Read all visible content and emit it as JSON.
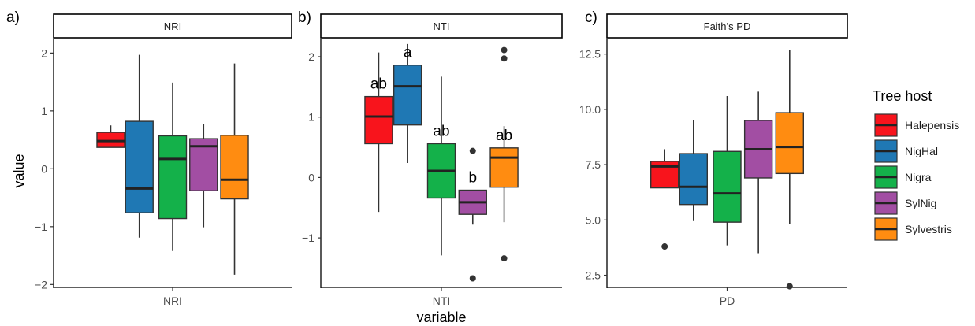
{
  "chart_data": [
    {
      "type": "boxplot",
      "panel_tag": "a)",
      "strip_title": "NRI",
      "xlabel": "NRI",
      "ylabel": "value",
      "ylim": [
        -2.05,
        2.25
      ],
      "yticks": [
        -2,
        -1,
        0,
        1,
        2
      ],
      "ytick_labels": [
        "−2",
        "−1",
        "0",
        "1",
        "2"
      ],
      "series": [
        {
          "name": "Halepensis",
          "whisker_low": 0.37,
          "q1": 0.37,
          "median": 0.48,
          "q3": 0.63,
          "whisker_high": 0.75,
          "outliers": [],
          "letter": ""
        },
        {
          "name": "NigHal",
          "whisker_low": -1.19,
          "q1": -0.76,
          "median": -0.34,
          "q3": 0.82,
          "whisker_high": 1.97,
          "outliers": [],
          "letter": ""
        },
        {
          "name": "Nigra",
          "whisker_low": -1.42,
          "q1": -0.86,
          "median": 0.17,
          "q3": 0.57,
          "whisker_high": 1.49,
          "outliers": [],
          "letter": ""
        },
        {
          "name": "SylNig",
          "whisker_low": -1.01,
          "q1": -0.38,
          "median": 0.39,
          "q3": 0.52,
          "whisker_high": 0.78,
          "outliers": [],
          "letter": ""
        },
        {
          "name": "Sylvestris",
          "whisker_low": -1.83,
          "q1": -0.52,
          "median": -0.19,
          "q3": 0.58,
          "whisker_high": 1.82,
          "outliers": [],
          "letter": ""
        }
      ]
    },
    {
      "type": "boxplot",
      "panel_tag": "b)",
      "strip_title": "NTI",
      "xlabel": "NTI",
      "ylabel": "",
      "ylim": [
        -1.82,
        2.3
      ],
      "yticks": [
        -1,
        0,
        1,
        2
      ],
      "ytick_labels": [
        "−1",
        "0",
        "1",
        "2"
      ],
      "series": [
        {
          "name": "Halepensis",
          "whisker_low": -0.57,
          "q1": 0.56,
          "median": 1.01,
          "q3": 1.34,
          "whisker_high": 2.07,
          "outliers": [],
          "letter": "ab"
        },
        {
          "name": "NigHal",
          "whisker_low": 0.24,
          "q1": 0.87,
          "median": 1.51,
          "q3": 1.86,
          "whisker_high": 2.21,
          "outliers": [],
          "letter": "a"
        },
        {
          "name": "Nigra",
          "whisker_low": -1.29,
          "q1": -0.34,
          "median": 0.11,
          "q3": 0.56,
          "whisker_high": 1.67,
          "outliers": [],
          "letter": "ab"
        },
        {
          "name": "SylNig",
          "whisker_low": -0.78,
          "q1": -0.61,
          "median": -0.41,
          "q3": -0.21,
          "whisker_high": -0.21,
          "outliers": [
            0.44,
            -1.67
          ],
          "letter": "b"
        },
        {
          "name": "Sylvestris",
          "whisker_low": -0.74,
          "q1": -0.16,
          "median": 0.33,
          "q3": 0.49,
          "whisker_high": 0.85,
          "outliers": [
            2.11,
            1.97,
            -1.34
          ],
          "letter": "ab"
        }
      ]
    },
    {
      "type": "boxplot",
      "panel_tag": "c)",
      "strip_title": "Faith’s PD",
      "xlabel": "PD",
      "ylabel": "",
      "ylim": [
        1.95,
        13.2
      ],
      "yticks": [
        2.5,
        5.0,
        7.5,
        10.0,
        12.5
      ],
      "ytick_labels": [
        "2.5",
        "5.0",
        "7.5",
        "10.0",
        "12.5"
      ],
      "series": [
        {
          "name": "Halepensis",
          "whisker_low": 6.45,
          "q1": 6.45,
          "median": 7.42,
          "q3": 7.65,
          "whisker_high": 8.2,
          "outliers": [
            3.8
          ],
          "letter": ""
        },
        {
          "name": "NigHal",
          "whisker_low": 4.95,
          "q1": 5.7,
          "median": 6.5,
          "q3": 8.0,
          "whisker_high": 9.5,
          "outliers": [],
          "letter": ""
        },
        {
          "name": "Nigra",
          "whisker_low": 3.85,
          "q1": 4.9,
          "median": 6.2,
          "q3": 8.1,
          "whisker_high": 10.6,
          "outliers": [],
          "letter": ""
        },
        {
          "name": "SylNig",
          "whisker_low": 3.5,
          "q1": 6.9,
          "median": 8.2,
          "q3": 9.5,
          "whisker_high": 10.8,
          "outliers": [],
          "letter": ""
        },
        {
          "name": "Sylvestris",
          "whisker_low": 4.8,
          "q1": 7.1,
          "median": 8.3,
          "q3": 9.85,
          "whisker_high": 12.7,
          "outliers": [
            2.0
          ],
          "letter": ""
        }
      ]
    }
  ],
  "shared_xlabel": "variable",
  "legend": {
    "title": "Tree host",
    "position": "right",
    "items": [
      {
        "label": "Halepensis",
        "color": "#f8141c"
      },
      {
        "label": "NigHal",
        "color": "#1f78b4"
      },
      {
        "label": "Nigra",
        "color": "#14b14a"
      },
      {
        "label": "SylNig",
        "color": "#a24ea3"
      },
      {
        "label": "Sylvestris",
        "color": "#ff8c11"
      }
    ]
  }
}
